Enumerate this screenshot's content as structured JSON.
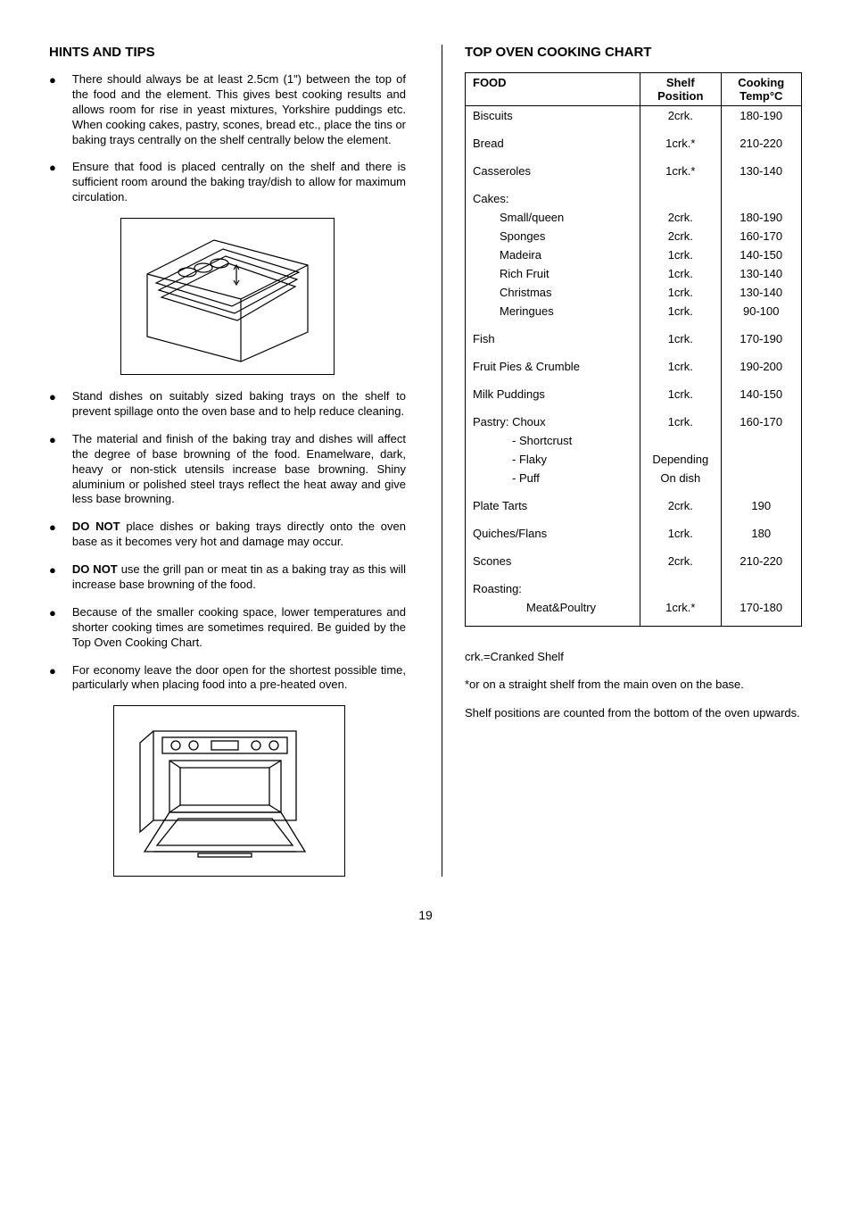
{
  "left": {
    "heading": "HINTS AND TIPS",
    "bullets": [
      {
        "pre": "",
        "bold": "",
        "post": "There should always be at least 2.5cm (1\") between the top of the food and the element. This gives best cooking results and allows room for rise in yeast mixtures, Yorkshire puddings etc. When cooking cakes, pastry, scones, bread etc., place the tins or baking trays centrally on the shelf centrally below the element."
      },
      {
        "pre": "",
        "bold": "",
        "post": "Ensure that food is placed centrally on the shelf and there is sufficient room around the baking tray/dish to allow for maximum circulation."
      },
      {
        "pre": "",
        "bold": "",
        "post": "Stand dishes on suitably sized baking trays on the shelf to prevent spillage onto the oven base and to help reduce cleaning."
      },
      {
        "pre": "",
        "bold": "",
        "post": "The material and finish of the baking tray and dishes will affect the degree of base browning of the food.  Enamelware, dark, heavy or non-stick utensils increase base browning.  Shiny aluminium or polished steel trays reflect the heat away and give less base browning."
      },
      {
        "pre": "",
        "bold": "DO NOT",
        "post": " place dishes or baking trays directly onto the oven base as it becomes very hot and damage may occur."
      },
      {
        "pre": "",
        "bold": "DO NOT",
        "post": " use the grill pan or meat tin as a baking tray as this will increase base browning of the food."
      },
      {
        "pre": "",
        "bold": "",
        "post": "Because of the smaller cooking space, lower temperatures and shorter cooking times are sometimes required.  Be guided by the Top Oven Cooking Chart."
      },
      {
        "pre": "",
        "bold": "",
        "post": "For economy leave the door open for the shortest possible time, particularly when placing food into a pre-heated oven."
      }
    ]
  },
  "right": {
    "heading": "TOP OVEN COOKING CHART",
    "header": {
      "food": "FOOD",
      "shelf": "Shelf Position",
      "temp": "Cooking Temp°C"
    },
    "rows": [
      {
        "food": "Biscuits",
        "shelf": "2crk.",
        "temp": "180-190",
        "sep": true
      },
      {
        "spacer": true
      },
      {
        "food": "Bread",
        "shelf": "1crk.*",
        "temp": "210-220"
      },
      {
        "spacer": true
      },
      {
        "food": "Casseroles",
        "shelf": "1crk.*",
        "temp": "130-140"
      },
      {
        "spacer": true
      },
      {
        "food": "Cakes:",
        "shelf": "",
        "temp": ""
      },
      {
        "food": "Small/queen",
        "shelf": "2crk.",
        "temp": "180-190",
        "indent": 1
      },
      {
        "food": "Sponges",
        "shelf": "2crk.",
        "temp": "160-170",
        "indent": 1
      },
      {
        "food": "Madeira",
        "shelf": "1crk.",
        "temp": "140-150",
        "indent": 1
      },
      {
        "food": "Rich Fruit",
        "shelf": "1crk.",
        "temp": "130-140",
        "indent": 1
      },
      {
        "food": "Christmas",
        "shelf": "1crk.",
        "temp": "130-140",
        "indent": 1
      },
      {
        "food": "Meringues",
        "shelf": "1crk.",
        "temp": "90-100",
        "indent": 1
      },
      {
        "spacer": true
      },
      {
        "food": "Fish",
        "shelf": "1crk.",
        "temp": "170-190"
      },
      {
        "spacer": true
      },
      {
        "food": "Fruit Pies & Crumble",
        "shelf": "1crk.",
        "temp": "190-200"
      },
      {
        "spacer": true
      },
      {
        "food": "Milk Puddings",
        "shelf": "1crk.",
        "temp": "140-150"
      },
      {
        "spacer": true
      },
      {
        "food": "Pastry: Choux",
        "shelf": "1crk.",
        "temp": "160-170"
      },
      {
        "food": "- Shortcrust",
        "shelf": "",
        "temp": "",
        "indent": 2
      },
      {
        "food": "- Flaky",
        "shelf": "Depending",
        "temp": "",
        "indent": 2
      },
      {
        "food": "- Puff",
        "shelf": "On dish",
        "temp": "",
        "indent": 2
      },
      {
        "spacer": true
      },
      {
        "food": "Plate Tarts",
        "shelf": "2crk.",
        "temp": "190"
      },
      {
        "spacer": true
      },
      {
        "food": "Quiches/Flans",
        "shelf": "1crk.",
        "temp": "180"
      },
      {
        "spacer": true
      },
      {
        "food": "Scones",
        "shelf": "2crk.",
        "temp": "210-220"
      },
      {
        "spacer": true
      },
      {
        "food": "Roasting:",
        "shelf": "",
        "temp": ""
      },
      {
        "food": "Meat&Poultry",
        "shelf": "1crk.*",
        "temp": "170-180",
        "indent": 3
      },
      {
        "spacer": true
      }
    ],
    "notes": [
      "crk.=Cranked Shelf",
      "*or on a straight  shelf from the main oven on the base.",
      "Shelf positions are counted from the bottom of the oven upwards."
    ]
  },
  "pageNum": "19"
}
